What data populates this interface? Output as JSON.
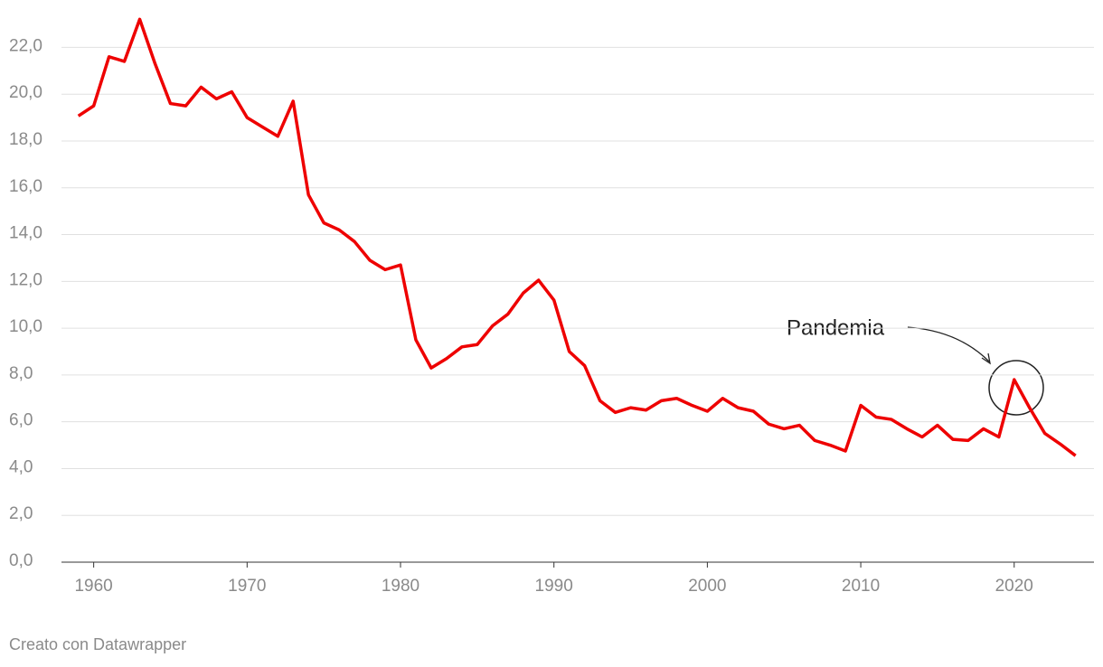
{
  "chart_data": {
    "type": "line",
    "x": [
      1959,
      1960,
      1961,
      1962,
      1963,
      1964,
      1965,
      1966,
      1967,
      1968,
      1969,
      1970,
      1971,
      1972,
      1973,
      1974,
      1975,
      1976,
      1977,
      1978,
      1979,
      1980,
      1981,
      1982,
      1983,
      1984,
      1985,
      1986,
      1987,
      1988,
      1989,
      1990,
      1991,
      1992,
      1993,
      1994,
      1995,
      1996,
      1997,
      1998,
      1999,
      2000,
      2001,
      2002,
      2003,
      2004,
      2005,
      2006,
      2007,
      2008,
      2009,
      2010,
      2011,
      2012,
      2013,
      2014,
      2015,
      2016,
      2017,
      2018,
      2019,
      2020,
      2021,
      2022,
      2023,
      2024
    ],
    "series": [
      {
        "color": "#ee0000",
        "values": [
          19.07,
          19.5,
          21.6,
          21.4,
          23.2,
          21.3,
          19.6,
          19.5,
          20.3,
          19.8,
          20.1,
          19.0,
          18.6,
          18.2,
          19.7,
          15.7,
          14.5,
          14.2,
          13.7,
          12.9,
          12.5,
          12.7,
          9.5,
          8.3,
          8.7,
          9.2,
          9.3,
          10.1,
          10.6,
          11.5,
          12.05,
          11.2,
          9.0,
          8.4,
          6.9,
          6.4,
          6.6,
          6.5,
          6.9,
          7.0,
          6.7,
          6.45,
          7.0,
          6.6,
          6.45,
          5.9,
          5.7,
          5.85,
          5.2,
          5.0,
          4.75,
          6.7,
          6.2,
          6.1,
          5.7,
          5.35,
          5.85,
          5.25,
          5.2,
          5.7,
          5.35,
          7.8,
          6.6,
          5.5,
          5.05,
          4.55
        ]
      }
    ],
    "xlim": [
      1957.9,
      2025.2
    ],
    "xticks": [
      1960,
      1970,
      1980,
      1990,
      2000,
      2010,
      2020
    ],
    "ylim": [
      0,
      23.6
    ],
    "yticks": [
      {
        "value": 0,
        "label": "0,0"
      },
      {
        "value": 2,
        "label": "2,0"
      },
      {
        "value": 4,
        "label": "4,0"
      },
      {
        "value": 6,
        "label": "6,0"
      },
      {
        "value": 8,
        "label": "8,0"
      },
      {
        "value": 10,
        "label": "10,0"
      },
      {
        "value": 12,
        "label": "12,0"
      },
      {
        "value": 14,
        "label": "14,0"
      },
      {
        "value": 16,
        "label": "16,0"
      },
      {
        "value": 18,
        "label": "18,0"
      },
      {
        "value": 20,
        "label": "20,0"
      },
      {
        "value": 22,
        "label": "22,0"
      }
    ],
    "grid": true,
    "annotation": "Pandemia",
    "footer": "Creato con Datawrapper"
  }
}
